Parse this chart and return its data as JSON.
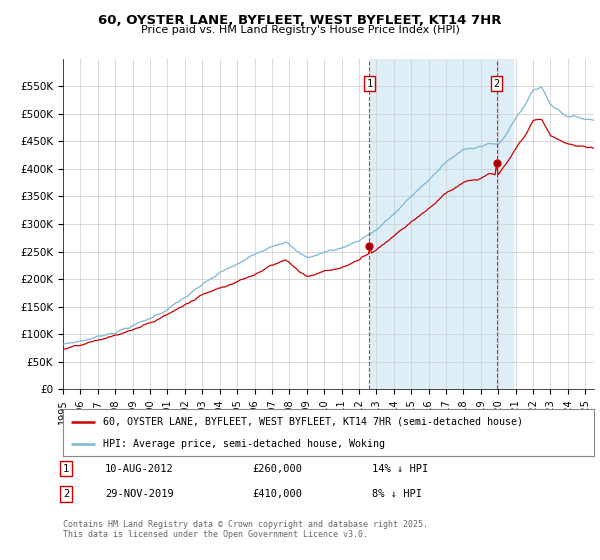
{
  "title_line1": "60, OYSTER LANE, BYFLEET, WEST BYFLEET, KT14 7HR",
  "title_line2": "Price paid vs. HM Land Registry's House Price Index (HPI)",
  "ylabel_ticks": [
    "£0",
    "£50K",
    "£100K",
    "£150K",
    "£200K",
    "£250K",
    "£300K",
    "£350K",
    "£400K",
    "£450K",
    "£500K",
    "£550K"
  ],
  "ytick_values": [
    0,
    50000,
    100000,
    150000,
    200000,
    250000,
    300000,
    350000,
    400000,
    450000,
    500000,
    550000
  ],
  "ylim_max": 600000,
  "x_start_year": 1995,
  "x_end_year": 2025,
  "hpi_color": "#7bb8d4",
  "price_color": "#cc0000",
  "sale1_date": "10-AUG-2012",
  "sale1_price": 260000,
  "sale1_label": "14% ↓ HPI",
  "sale1_year": 2012.6,
  "sale2_date": "29-NOV-2019",
  "sale2_price": 410000,
  "sale2_label": "8% ↓ HPI",
  "sale2_year": 2019.9,
  "legend_label1": "60, OYSTER LANE, BYFLEET, WEST BYFLEET, KT14 7HR (semi-detached house)",
  "legend_label2": "HPI: Average price, semi-detached house, Woking",
  "footnote": "Contains HM Land Registry data © Crown copyright and database right 2025.\nThis data is licensed under the Open Government Licence v3.0.",
  "shaded_region_color": "#deeef7",
  "background_color": "#ffffff",
  "grid_color": "#cccccc"
}
